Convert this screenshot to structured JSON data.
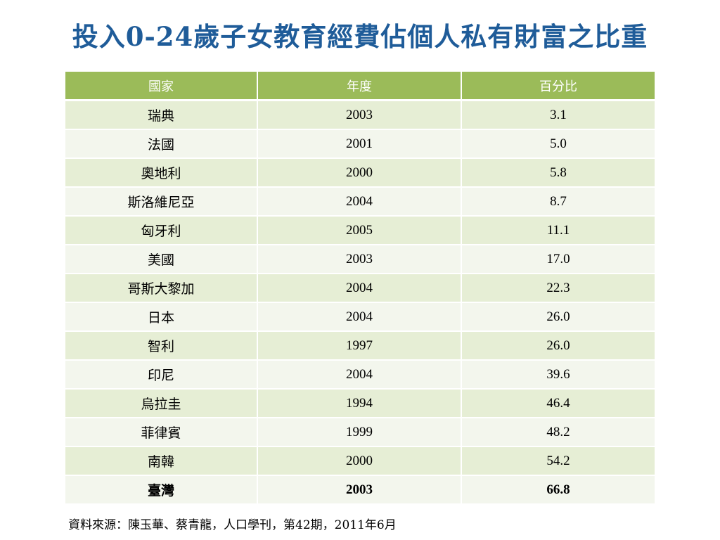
{
  "title": "投入0-24歲子女教育經費佔個人私有財富之比重",
  "table": {
    "headers": [
      "國家",
      "年度",
      "百分比"
    ],
    "rows": [
      {
        "country": "瑞典",
        "year": "2003",
        "percent": "3.1"
      },
      {
        "country": "法國",
        "year": "2001",
        "percent": "5.0"
      },
      {
        "country": "奧地利",
        "year": "2000",
        "percent": "5.8"
      },
      {
        "country": "斯洛維尼亞",
        "year": "2004",
        "percent": "8.7"
      },
      {
        "country": "匈牙利",
        "year": "2005",
        "percent": "11.1"
      },
      {
        "country": "美國",
        "year": "2003",
        "percent": "17.0"
      },
      {
        "country": "哥斯大黎加",
        "year": "2004",
        "percent": "22.3"
      },
      {
        "country": "日本",
        "year": "2004",
        "percent": "26.0"
      },
      {
        "country": "智利",
        "year": "1997",
        "percent": "26.0"
      },
      {
        "country": "印尼",
        "year": "2004",
        "percent": "39.6"
      },
      {
        "country": "烏拉圭",
        "year": "1994",
        "percent": "46.4"
      },
      {
        "country": "菲律賓",
        "year": "1999",
        "percent": "48.2"
      },
      {
        "country": "南韓",
        "year": "2000",
        "percent": "54.2"
      },
      {
        "country": "臺灣",
        "year": "2003",
        "percent": "66.8"
      }
    ],
    "header_color": "#9bbb59",
    "row_band_color": "#e6eed5",
    "row_alt_color": "#f3f6ed"
  },
  "source": "資料來源：陳玉華、蔡青龍，人口學刊，第42期，2011年6月",
  "colors": {
    "title": "#1f5c99"
  }
}
